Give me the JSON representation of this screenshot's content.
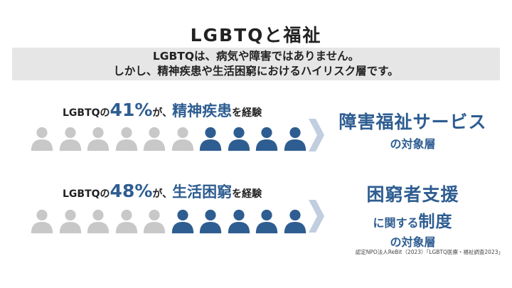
{
  "title": "LGBTQと福祉",
  "banner": {
    "line1": "LGBTQは、病気や障害ではありません。",
    "line2": "しかし、精神疾患や生活困窮におけるハイリスク層です。"
  },
  "rows": [
    {
      "label_prefix": "LGBTQの",
      "percent": "41%",
      "label_mid": "が、",
      "highlight": "精神疾患",
      "label_suffix": "を経験",
      "people_total": 10,
      "people_highlighted": 4,
      "result_big": "障害福祉サービス",
      "result_small": "の対象層"
    },
    {
      "label_prefix": "LGBTQの",
      "percent": "48%",
      "label_mid": "が、",
      "highlight": "生活困窮",
      "label_suffix": "を経験",
      "people_total": 10,
      "people_highlighted": 5,
      "result_big": "困窮者支援",
      "result_mid_lead": "に関する",
      "result_mid_strong": "制度",
      "result_small": "の対象層"
    }
  ],
  "source": "認定NPO法人ReBit（2023）「LGBTQ医療・福祉調査2023」",
  "colors": {
    "accent": "#2e5d91",
    "muted": "#c8c8c8",
    "banner": "#e6e6e6",
    "chevron": "#c0cedf"
  },
  "icon": "person-icon"
}
